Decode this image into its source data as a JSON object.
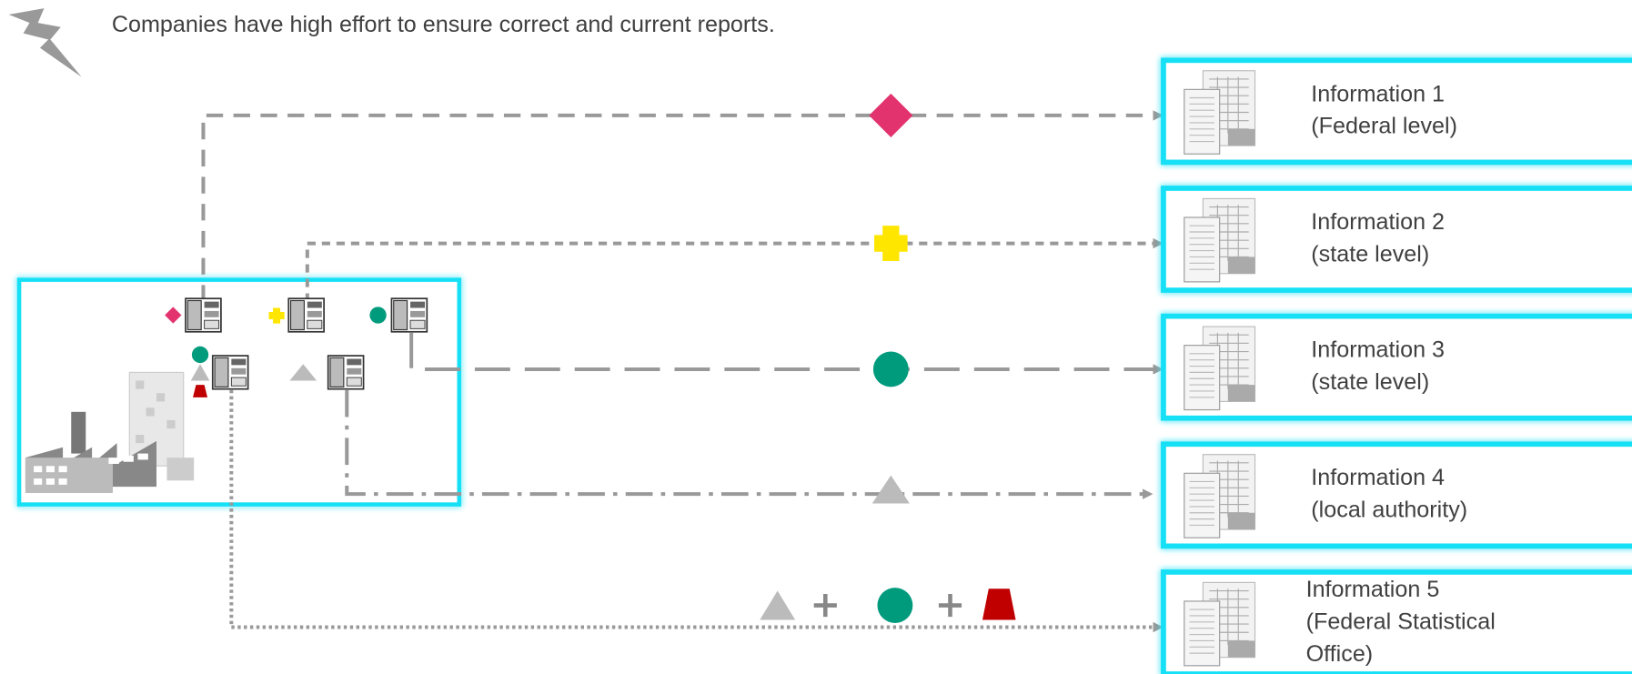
{
  "header": {
    "text": "Companies have high effort to ensure correct and current reports."
  },
  "info_boxes": [
    {
      "lines": [
        "Information 1",
        "(Federal level)"
      ]
    },
    {
      "lines": [
        "Information 2",
        "(state level)"
      ]
    },
    {
      "lines": [
        "Information 3",
        "(state level)"
      ]
    },
    {
      "lines": [
        "Information 4",
        "(local authority)"
      ]
    },
    {
      "lines": [
        "Information 5",
        "(Federal Statistical",
        "Office)"
      ]
    }
  ]
}
